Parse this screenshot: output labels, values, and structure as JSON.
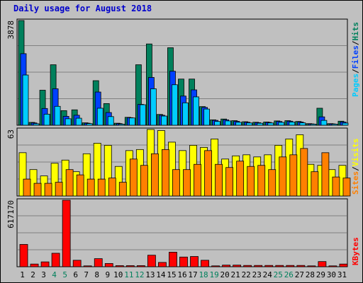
{
  "page": {
    "title": "Daily usage for August 2018"
  },
  "colors": {
    "background": "#c0c0c0",
    "title": "#0000cc",
    "hits": "#00805c",
    "files": "#0040ff",
    "pages": "#00ccff",
    "visits": "#ffff00",
    "sites": "#ff8000",
    "kbytes": "#ff0000",
    "weekend_label": "#00805c",
    "weekday_label": "#000000",
    "separator": "#7f7f7f"
  },
  "chart_data": [
    {
      "type": "bar",
      "id": "hits-files-pages",
      "y_max_label": "3878",
      "ylim": [
        0,
        3878
      ],
      "legend": [
        {
          "label": "Pages",
          "color": "#00ccff"
        },
        {
          "label": "/",
          "color": "#000000"
        },
        {
          "label": "Files",
          "color": "#0040ff"
        },
        {
          "label": "/",
          "color": "#000000"
        },
        {
          "label": "Hits",
          "color": "#00805c"
        }
      ],
      "categories": [
        "1",
        "2",
        "3",
        "4",
        "5",
        "6",
        "7",
        "8",
        "9",
        "10",
        "11",
        "12",
        "13",
        "14",
        "15",
        "16",
        "17",
        "18",
        "19",
        "20",
        "21",
        "22",
        "23",
        "24",
        "25",
        "26",
        "27",
        "28",
        "29",
        "30",
        "31"
      ],
      "series": [
        {
          "name": "Hits",
          "values": [
            3878,
            105,
            1297,
            2240,
            540,
            570,
            90,
            1650,
            802,
            75,
            293,
            2240,
            3010,
            400,
            2870,
            1710,
            1710,
            690,
            200,
            230,
            170,
            130,
            110,
            120,
            160,
            170,
            140,
            60,
            630,
            60,
            150
          ]
        },
        {
          "name": "Files",
          "values": [
            2650,
            85,
            620,
            1350,
            330,
            370,
            75,
            1230,
            470,
            60,
            280,
            773,
            1770,
            370,
            2000,
            1080,
            1310,
            660,
            180,
            200,
            145,
            110,
            95,
            105,
            140,
            150,
            120,
            50,
            310,
            50,
            120
          ]
        },
        {
          "name": "Pages",
          "values": [
            1860,
            55,
            410,
            700,
            240,
            260,
            60,
            630,
            320,
            40,
            270,
            760,
            1350,
            340,
            1500,
            830,
            1050,
            600,
            140,
            160,
            110,
            85,
            75,
            85,
            105,
            120,
            90,
            40,
            180,
            40,
            80
          ]
        }
      ]
    },
    {
      "type": "bar",
      "id": "visits-sites",
      "y_max_label": "63",
      "ylim": [
        0,
        63
      ],
      "legend": [
        {
          "label": "Sites",
          "color": "#ff8000"
        },
        {
          "label": "/",
          "color": "#000000"
        },
        {
          "label": "Visits",
          "color": "#ffff00"
        }
      ],
      "categories": [
        "1",
        "2",
        "3",
        "4",
        "5",
        "6",
        "7",
        "8",
        "9",
        "10",
        "11",
        "12",
        "13",
        "14",
        "15",
        "16",
        "17",
        "18",
        "19",
        "20",
        "21",
        "22",
        "23",
        "24",
        "25",
        "26",
        "27",
        "28",
        "29",
        "30",
        "31"
      ],
      "series": [
        {
          "name": "Visits",
          "values": [
            41,
            25,
            19,
            31,
            34,
            23,
            40,
            50,
            48,
            28,
            43,
            44,
            63,
            62,
            51,
            43,
            48,
            46,
            54,
            35,
            38,
            39,
            37,
            39,
            48,
            54,
            58,
            30,
            29,
            25,
            29
          ]
        },
        {
          "name": "Sites",
          "values": [
            16,
            12,
            12,
            13,
            25,
            20,
            16,
            16,
            17,
            13,
            35,
            29,
            40,
            44,
            25,
            25,
            30,
            43,
            30,
            27,
            33,
            28,
            29,
            25,
            37,
            39,
            45,
            23,
            41,
            18,
            17
          ]
        }
      ]
    },
    {
      "type": "bar",
      "id": "kbytes",
      "y_max_label": "617170",
      "ylim": [
        0,
        617170
      ],
      "legend": [
        {
          "label": "KBytes",
          "color": "#ff0000"
        }
      ],
      "categories": [
        "1",
        "2",
        "3",
        "4",
        "5",
        "6",
        "7",
        "8",
        "9",
        "10",
        "11",
        "12",
        "13",
        "14",
        "15",
        "16",
        "17",
        "18",
        "19",
        "20",
        "21",
        "22",
        "23",
        "24",
        "25",
        "26",
        "27",
        "28",
        "29",
        "30",
        "31"
      ],
      "series": [
        {
          "name": "KBytes",
          "values": [
            207000,
            25000,
            45000,
            125000,
            617170,
            60000,
            8000,
            75000,
            30000,
            10000,
            10000,
            10000,
            107000,
            40000,
            135000,
            90000,
            95000,
            60000,
            8000,
            15000,
            15000,
            12000,
            12000,
            12000,
            12000,
            12000,
            12000,
            8000,
            48000,
            8000,
            25000
          ]
        }
      ]
    }
  ],
  "x_axis": {
    "days": [
      "1",
      "2",
      "3",
      "4",
      "5",
      "6",
      "7",
      "8",
      "9",
      "10",
      "11",
      "12",
      "13",
      "14",
      "15",
      "16",
      "17",
      "18",
      "19",
      "20",
      "21",
      "22",
      "23",
      "24",
      "25",
      "26",
      "27",
      "28",
      "29",
      "30",
      "31"
    ],
    "weekend_days": [
      "4",
      "5",
      "11",
      "12",
      "18",
      "19",
      "25",
      "26"
    ]
  }
}
